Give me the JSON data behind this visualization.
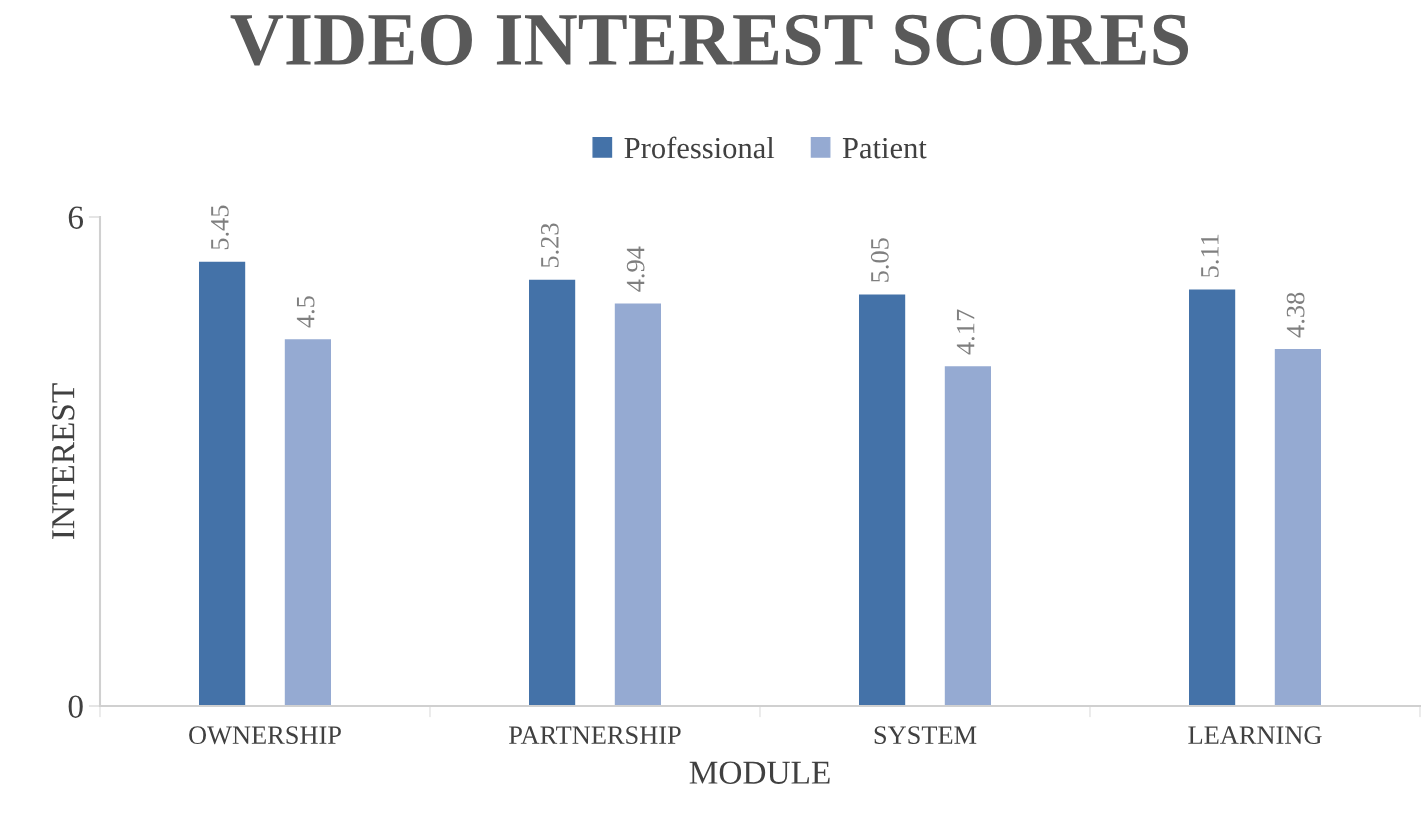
{
  "chart_data": {
    "type": "bar",
    "title": "VIDEO INTEREST SCORES",
    "xlabel": "MODULE",
    "ylabel": "INTEREST",
    "categories": [
      "OWNERSHIP",
      "PARTNERSHIP",
      "SYSTEM",
      "LEARNING"
    ],
    "series": [
      {
        "name": "Professional",
        "color": "#4472a8",
        "values": [
          5.45,
          5.23,
          5.05,
          5.11
        ]
      },
      {
        "name": "Patient",
        "color": "#95aad2",
        "values": [
          4.5,
          4.94,
          4.17,
          4.38
        ]
      }
    ],
    "ylim": [
      0,
      6
    ],
    "yticks": [
      0,
      6
    ],
    "grid": false,
    "legend": "top",
    "data_labels": true
  }
}
